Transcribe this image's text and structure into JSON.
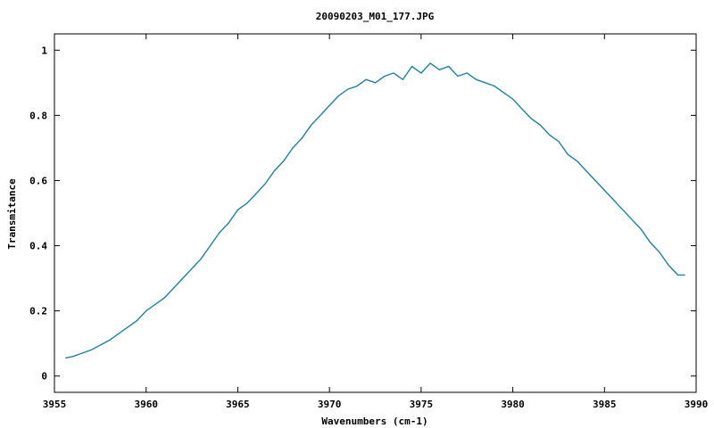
{
  "chart_data": {
    "type": "line",
    "title": "20090203_M01_177.JPG",
    "xlabel": "Wavenumbers (cm-1)",
    "ylabel": "Transmitance",
    "xlim": [
      3955,
      3990
    ],
    "ylim": [
      -0.05,
      1.05
    ],
    "xticks": [
      3955,
      3960,
      3965,
      3970,
      3975,
      3980,
      3985,
      3990
    ],
    "yticks": [
      0,
      0.2,
      0.4,
      0.6,
      0.8,
      1
    ],
    "xtick_labels": [
      "3955",
      "3960",
      "3965",
      "3970",
      "3975",
      "3980",
      "3985",
      "3990"
    ],
    "ytick_labels": [
      "0",
      "0.2",
      "0.4",
      "0.6",
      "0.8",
      "1"
    ],
    "grid": false,
    "line_color": "#2080a0",
    "series": [
      {
        "x": [
          3955.6,
          3956.0,
          3956.5,
          3957.0,
          3957.5,
          3958.0,
          3958.5,
          3959.0,
          3959.5,
          3960.0,
          3960.5,
          3961.0,
          3961.5,
          3962.0,
          3962.5,
          3963.0,
          3963.5,
          3964.0,
          3964.5,
          3965.0,
          3965.5,
          3966.0,
          3966.5,
          3967.0,
          3967.5,
          3968.0,
          3968.5,
          3969.0,
          3969.5,
          3970.0,
          3970.5,
          3971.0,
          3971.5,
          3972.0,
          3972.5,
          3973.0,
          3973.5,
          3974.0,
          3974.5,
          3975.0,
          3975.5,
          3976.0,
          3976.5,
          3977.0,
          3977.5,
          3978.0,
          3978.5,
          3979.0,
          3979.5,
          3980.0,
          3980.5,
          3981.0,
          3981.5,
          3982.0,
          3982.5,
          3983.0,
          3983.5,
          3984.0,
          3984.5,
          3985.0,
          3985.5,
          3986.0,
          3986.5,
          3987.0,
          3987.5,
          3988.0,
          3988.5,
          3989.0,
          3989.4
        ],
        "values": [
          0.055,
          0.06,
          0.07,
          0.08,
          0.095,
          0.11,
          0.13,
          0.15,
          0.17,
          0.2,
          0.22,
          0.24,
          0.27,
          0.3,
          0.33,
          0.36,
          0.4,
          0.44,
          0.47,
          0.51,
          0.53,
          0.56,
          0.59,
          0.63,
          0.66,
          0.7,
          0.73,
          0.77,
          0.8,
          0.83,
          0.86,
          0.88,
          0.89,
          0.91,
          0.9,
          0.92,
          0.93,
          0.91,
          0.95,
          0.93,
          0.96,
          0.94,
          0.95,
          0.92,
          0.93,
          0.91,
          0.9,
          0.89,
          0.87,
          0.85,
          0.82,
          0.79,
          0.77,
          0.74,
          0.72,
          0.68,
          0.66,
          0.63,
          0.6,
          0.57,
          0.54,
          0.51,
          0.48,
          0.45,
          0.41,
          0.38,
          0.34,
          0.31,
          0.31
        ]
      }
    ]
  }
}
